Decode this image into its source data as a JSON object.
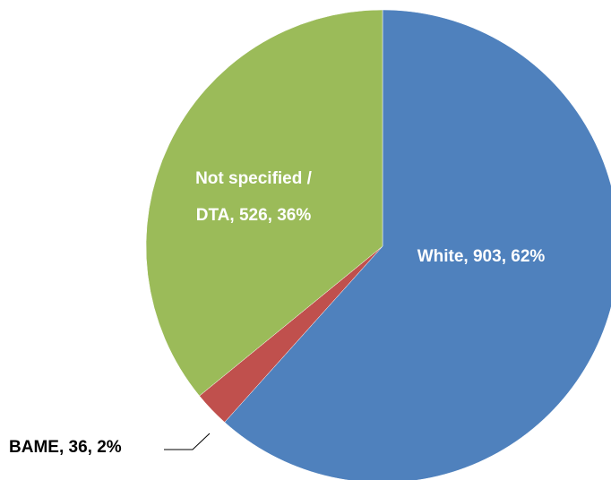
{
  "chart_data": {
    "type": "pie",
    "title": "",
    "start_angle_deg": 0,
    "direction": "clockwise",
    "slices": [
      {
        "name": "White",
        "value": 903,
        "percent": 62,
        "label": "White, 903, 62%",
        "color": "#4F81BD"
      },
      {
        "name": "BAME",
        "value": 36,
        "percent": 2,
        "label": "BAME, 36, 2%",
        "color": "#C0504D"
      },
      {
        "name": "Not specified / DTA",
        "value": 526,
        "percent": 36,
        "label_lines": [
          "Not specified /",
          "DTA, 526, 36%"
        ],
        "color": "#9BBB59"
      }
    ],
    "legend": "none"
  }
}
